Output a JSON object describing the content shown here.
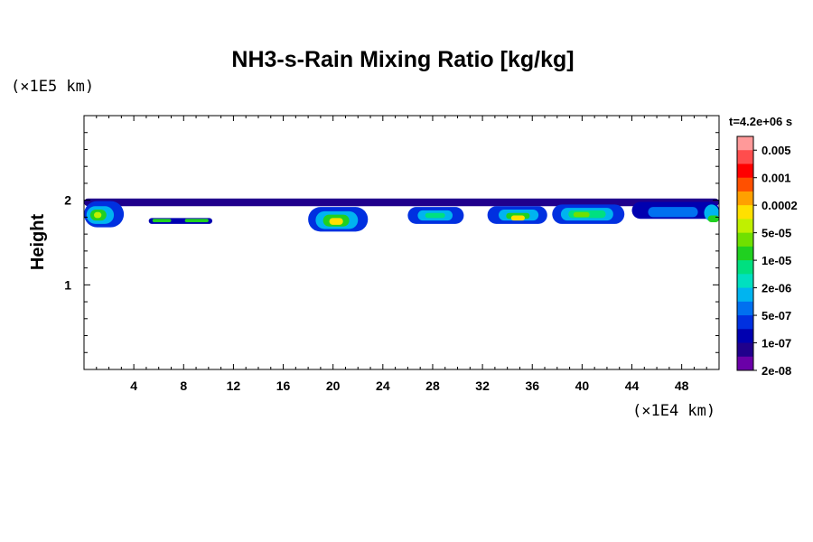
{
  "chart_data": {
    "type": "heatmap",
    "title": "NH3-s-Rain Mixing Ratio [kg/kg]",
    "ylabel": "Height",
    "y_unit": "(×1E5 km)",
    "x_unit": "(×1E4 km)",
    "time_label": "t=4.2e+06 s",
    "xlim": [
      0,
      51
    ],
    "ylim": [
      0,
      3
    ],
    "x_ticks": [
      4,
      8,
      12,
      16,
      20,
      24,
      28,
      32,
      36,
      40,
      44,
      48
    ],
    "x_tick_labels": [
      "4",
      "8",
      "12",
      "16",
      "20",
      "24",
      "28",
      "32",
      "36",
      "40",
      "44",
      "48"
    ],
    "y_ticks": [
      1,
      2
    ],
    "y_tick_labels": [
      "1",
      "2"
    ],
    "colorbar": {
      "levels": [
        "0.005",
        "0.001",
        "0.0002",
        "5e-05",
        "1e-05",
        "2e-06",
        "5e-07",
        "1e-07",
        "2e-08"
      ],
      "colors": [
        "#ff9999",
        "#ff4d4d",
        "#ff0000",
        "#ff5000",
        "#ffa000",
        "#ffe000",
        "#c0f000",
        "#70e000",
        "#20d020",
        "#00e080",
        "#00e0c0",
        "#00b4f0",
        "#0070f0",
        "#0030e0",
        "#0000b0",
        "#20008c",
        "#6a00a8"
      ]
    },
    "field_bands": [
      {
        "x0": 0.0,
        "x1": 51.0,
        "y_top": 2.02,
        "y_bottom": 1.93,
        "level_index": 15
      },
      {
        "x0": 0.0,
        "x1": 3.2,
        "y_top": 1.99,
        "y_bottom": 1.68,
        "level_index": 13
      },
      {
        "x0": 0.2,
        "x1": 2.4,
        "y_top": 1.93,
        "y_bottom": 1.72,
        "level_index": 11
      },
      {
        "x0": 0.5,
        "x1": 1.8,
        "y_top": 1.89,
        "y_bottom": 1.76,
        "level_index": 8
      },
      {
        "x0": 0.8,
        "x1": 1.4,
        "y_top": 1.86,
        "y_bottom": 1.79,
        "level_index": 6
      },
      {
        "x0": 5.2,
        "x1": 10.3,
        "y_top": 1.79,
        "y_bottom": 1.72,
        "level_index": 14
      },
      {
        "x0": 5.5,
        "x1": 7.0,
        "y_top": 1.78,
        "y_bottom": 1.74,
        "level_index": 8
      },
      {
        "x0": 8.1,
        "x1": 10.0,
        "y_top": 1.78,
        "y_bottom": 1.74,
        "level_index": 8
      },
      {
        "x0": 18.0,
        "x1": 22.8,
        "y_top": 1.92,
        "y_bottom": 1.63,
        "level_index": 13
      },
      {
        "x0": 18.6,
        "x1": 22.0,
        "y_top": 1.87,
        "y_bottom": 1.66,
        "level_index": 11
      },
      {
        "x0": 19.2,
        "x1": 21.3,
        "y_top": 1.83,
        "y_bottom": 1.69,
        "level_index": 8
      },
      {
        "x0": 19.7,
        "x1": 20.8,
        "y_top": 1.79,
        "y_bottom": 1.71,
        "level_index": 5
      },
      {
        "x0": 26.0,
        "x1": 30.5,
        "y_top": 1.92,
        "y_bottom": 1.72,
        "level_index": 13
      },
      {
        "x0": 26.8,
        "x1": 29.6,
        "y_top": 1.88,
        "y_bottom": 1.76,
        "level_index": 11
      },
      {
        "x0": 27.4,
        "x1": 29.0,
        "y_top": 1.85,
        "y_bottom": 1.79,
        "level_index": 9
      },
      {
        "x0": 32.4,
        "x1": 37.2,
        "y_top": 1.93,
        "y_bottom": 1.72,
        "level_index": 13
      },
      {
        "x0": 33.3,
        "x1": 36.5,
        "y_top": 1.89,
        "y_bottom": 1.76,
        "level_index": 11
      },
      {
        "x0": 33.9,
        "x1": 35.8,
        "y_top": 1.85,
        "y_bottom": 1.78,
        "level_index": 8
      },
      {
        "x0": 34.3,
        "x1": 35.4,
        "y_top": 1.82,
        "y_bottom": 1.76,
        "level_index": 5
      },
      {
        "x0": 37.6,
        "x1": 43.4,
        "y_top": 1.95,
        "y_bottom": 1.72,
        "level_index": 13
      },
      {
        "x0": 38.3,
        "x1": 42.5,
        "y_top": 1.91,
        "y_bottom": 1.76,
        "level_index": 11
      },
      {
        "x0": 38.9,
        "x1": 41.9,
        "y_top": 1.88,
        "y_bottom": 1.79,
        "level_index": 9
      },
      {
        "x0": 39.3,
        "x1": 40.6,
        "y_top": 1.86,
        "y_bottom": 1.8,
        "level_index": 7
      },
      {
        "x0": 44.0,
        "x1": 51.0,
        "y_top": 1.98,
        "y_bottom": 1.78,
        "level_index": 14
      },
      {
        "x0": 45.3,
        "x1": 49.3,
        "y_top": 1.92,
        "y_bottom": 1.8,
        "level_index": 12
      },
      {
        "x0": 49.8,
        "x1": 51.0,
        "y_top": 1.95,
        "y_bottom": 1.75,
        "level_index": 11
      },
      {
        "x0": 50.1,
        "x1": 51.0,
        "y_top": 1.82,
        "y_bottom": 1.74,
        "level_index": 8
      }
    ]
  }
}
